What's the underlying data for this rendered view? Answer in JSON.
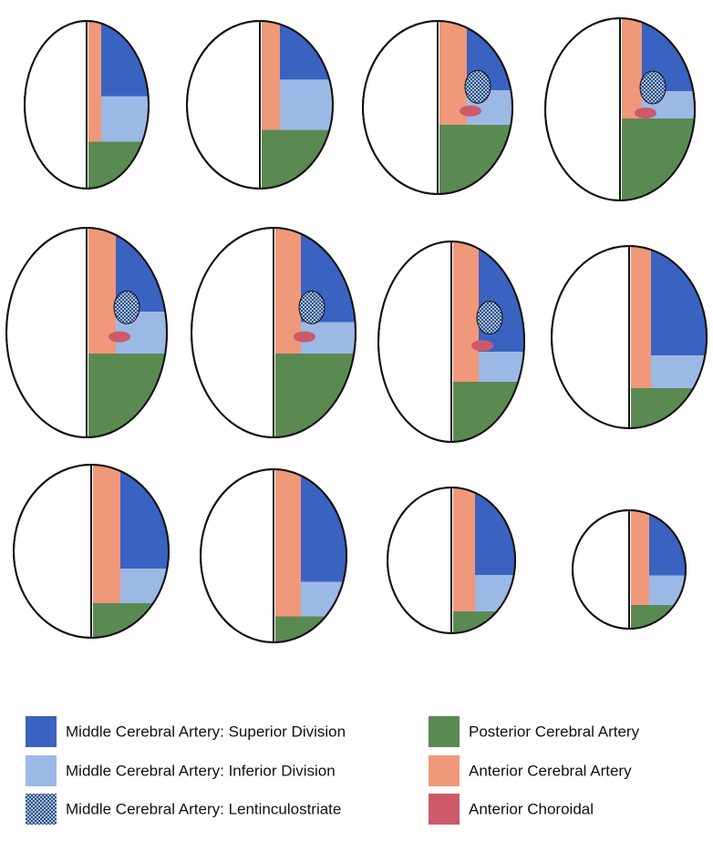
{
  "legend": {
    "items": [
      {
        "label": "Middle Cerebral Artery: Superior Division",
        "color": "#3a62c0"
      },
      {
        "label": "Middle Cerebral Artery: Inferior Division",
        "color": "#9cb9e6"
      },
      {
        "label": "Middle Cerebral Artery: Lentinculostriate",
        "color": "#7f98b8"
      },
      {
        "label": "Posterior Cerebral Artery",
        "color": "#5a8a52"
      },
      {
        "label": "Anterior Cerebral Artery",
        "color": "#f0987a"
      },
      {
        "label": "Anterior Choroidal",
        "color": "#cc5a6a"
      }
    ]
  }
}
